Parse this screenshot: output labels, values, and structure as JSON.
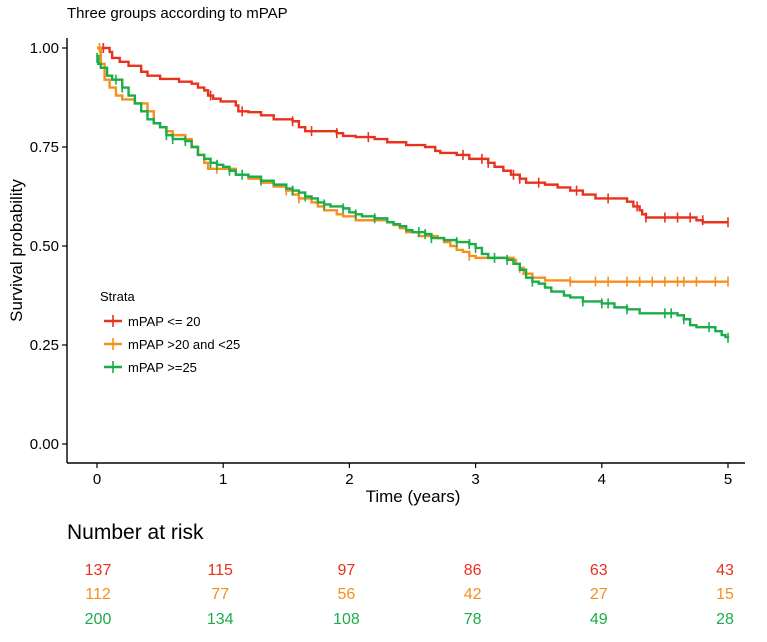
{
  "chart_data": {
    "type": "line",
    "title": "Three groups according to mPAP",
    "xlabel": "Time (years)",
    "ylabel": "Survival probability",
    "xlim": [
      0,
      5
    ],
    "ylim": [
      0,
      1
    ],
    "x_ticks": [
      0,
      1,
      2,
      3,
      4,
      5
    ],
    "x_tick_labels": [
      "0",
      "1",
      "2",
      "3",
      "4",
      "5"
    ],
    "y_ticks": [
      0,
      0.25,
      0.5,
      0.75,
      1
    ],
    "y_tick_labels": [
      "0.00",
      "0.25",
      "0.50",
      "0.75",
      "1.00"
    ],
    "grid": false,
    "legend_title": "Strata",
    "legend_position": "left-middle",
    "series": [
      {
        "name": "mPAP <= 20",
        "color": "#e8321e",
        "steps": [
          [
            0,
            1.0
          ],
          [
            0.1,
            0.99
          ],
          [
            0.12,
            0.975
          ],
          [
            0.18,
            0.965
          ],
          [
            0.25,
            0.955
          ],
          [
            0.35,
            0.94
          ],
          [
            0.4,
            0.93
          ],
          [
            0.5,
            0.922
          ],
          [
            0.65,
            0.915
          ],
          [
            0.75,
            0.91
          ],
          [
            0.8,
            0.9
          ],
          [
            0.85,
            0.893
          ],
          [
            0.88,
            0.88
          ],
          [
            0.92,
            0.872
          ],
          [
            0.98,
            0.865
          ],
          [
            1.1,
            0.855
          ],
          [
            1.12,
            0.84
          ],
          [
            1.2,
            0.838
          ],
          [
            1.3,
            0.83
          ],
          [
            1.4,
            0.82
          ],
          [
            1.55,
            0.815
          ],
          [
            1.6,
            0.8
          ],
          [
            1.65,
            0.79
          ],
          [
            1.9,
            0.785
          ],
          [
            1.95,
            0.778
          ],
          [
            2.05,
            0.775
          ],
          [
            2.2,
            0.77
          ],
          [
            2.3,
            0.762
          ],
          [
            2.45,
            0.755
          ],
          [
            2.6,
            0.75
          ],
          [
            2.68,
            0.74
          ],
          [
            2.72,
            0.735
          ],
          [
            2.85,
            0.73
          ],
          [
            2.95,
            0.72
          ],
          [
            3.1,
            0.71
          ],
          [
            3.15,
            0.7
          ],
          [
            3.22,
            0.69
          ],
          [
            3.28,
            0.68
          ],
          [
            3.35,
            0.67
          ],
          [
            3.4,
            0.66
          ],
          [
            3.55,
            0.655
          ],
          [
            3.65,
            0.648
          ],
          [
            3.75,
            0.64
          ],
          [
            3.85,
            0.63
          ],
          [
            3.95,
            0.62
          ],
          [
            4.2,
            0.612
          ],
          [
            4.25,
            0.6
          ],
          [
            4.3,
            0.59
          ],
          [
            4.32,
            0.58
          ],
          [
            4.35,
            0.572
          ],
          [
            4.75,
            0.565
          ],
          [
            4.8,
            0.56
          ],
          [
            5.0,
            0.56
          ]
        ],
        "censors": [
          [
            0.05,
            1.0
          ],
          [
            0.9,
            0.88
          ],
          [
            1.15,
            0.84
          ],
          [
            1.55,
            0.815
          ],
          [
            1.7,
            0.79
          ],
          [
            1.9,
            0.785
          ],
          [
            2.15,
            0.775
          ],
          [
            2.9,
            0.73
          ],
          [
            3.05,
            0.72
          ],
          [
            3.1,
            0.71
          ],
          [
            3.3,
            0.68
          ],
          [
            3.35,
            0.67
          ],
          [
            3.5,
            0.66
          ],
          [
            3.8,
            0.64
          ],
          [
            4.05,
            0.62
          ],
          [
            4.28,
            0.6
          ],
          [
            4.35,
            0.572
          ],
          [
            4.5,
            0.572
          ],
          [
            4.6,
            0.572
          ],
          [
            4.7,
            0.572
          ],
          [
            4.8,
            0.565
          ],
          [
            5.0,
            0.56
          ]
        ]
      },
      {
        "name": "mPAP >20 and <25",
        "color": "#f5901e",
        "steps": [
          [
            0,
            1.0
          ],
          [
            0.03,
            0.96
          ],
          [
            0.06,
            0.92
          ],
          [
            0.1,
            0.9
          ],
          [
            0.15,
            0.88
          ],
          [
            0.2,
            0.87
          ],
          [
            0.3,
            0.86
          ],
          [
            0.4,
            0.84
          ],
          [
            0.45,
            0.81
          ],
          [
            0.5,
            0.8
          ],
          [
            0.55,
            0.79
          ],
          [
            0.6,
            0.78
          ],
          [
            0.7,
            0.77
          ],
          [
            0.75,
            0.75
          ],
          [
            0.8,
            0.73
          ],
          [
            0.85,
            0.71
          ],
          [
            0.88,
            0.695
          ],
          [
            1.1,
            0.68
          ],
          [
            1.2,
            0.67
          ],
          [
            1.3,
            0.66
          ],
          [
            1.4,
            0.65
          ],
          [
            1.5,
            0.64
          ],
          [
            1.55,
            0.63
          ],
          [
            1.6,
            0.62
          ],
          [
            1.7,
            0.61
          ],
          [
            1.75,
            0.6
          ],
          [
            1.8,
            0.59
          ],
          [
            1.9,
            0.58
          ],
          [
            1.95,
            0.575
          ],
          [
            2.05,
            0.565
          ],
          [
            2.3,
            0.56
          ],
          [
            2.35,
            0.553
          ],
          [
            2.4,
            0.545
          ],
          [
            2.45,
            0.535
          ],
          [
            2.55,
            0.525
          ],
          [
            2.7,
            0.52
          ],
          [
            2.75,
            0.51
          ],
          [
            2.8,
            0.5
          ],
          [
            2.85,
            0.49
          ],
          [
            2.9,
            0.485
          ],
          [
            2.95,
            0.475
          ],
          [
            3.0,
            0.47
          ],
          [
            3.3,
            0.465
          ],
          [
            3.32,
            0.455
          ],
          [
            3.35,
            0.445
          ],
          [
            3.38,
            0.43
          ],
          [
            3.45,
            0.42
          ],
          [
            3.55,
            0.413
          ],
          [
            3.75,
            0.41
          ],
          [
            5.0,
            0.41
          ]
        ],
        "censors": [
          [
            0.02,
            1.0
          ],
          [
            0.6,
            0.78
          ],
          [
            0.95,
            0.695
          ],
          [
            1.5,
            0.64
          ],
          [
            1.6,
            0.62
          ],
          [
            2.95,
            0.475
          ],
          [
            3.35,
            0.445
          ],
          [
            3.75,
            0.41
          ],
          [
            3.95,
            0.41
          ],
          [
            4.05,
            0.41
          ],
          [
            4.2,
            0.41
          ],
          [
            4.3,
            0.41
          ],
          [
            4.4,
            0.41
          ],
          [
            4.5,
            0.41
          ],
          [
            4.6,
            0.41
          ],
          [
            4.65,
            0.41
          ],
          [
            4.75,
            0.41
          ],
          [
            4.9,
            0.41
          ],
          [
            5.0,
            0.41
          ]
        ]
      },
      {
        "name": "mPAP >=25",
        "color": "#1aad49",
        "steps": [
          [
            0,
            0.98
          ],
          [
            0.01,
            0.96
          ],
          [
            0.03,
            0.95
          ],
          [
            0.08,
            0.93
          ],
          [
            0.12,
            0.92
          ],
          [
            0.2,
            0.9
          ],
          [
            0.25,
            0.88
          ],
          [
            0.3,
            0.86
          ],
          [
            0.35,
            0.84
          ],
          [
            0.4,
            0.82
          ],
          [
            0.45,
            0.81
          ],
          [
            0.5,
            0.8
          ],
          [
            0.55,
            0.78
          ],
          [
            0.6,
            0.77
          ],
          [
            0.7,
            0.765
          ],
          [
            0.75,
            0.75
          ],
          [
            0.8,
            0.73
          ],
          [
            0.85,
            0.72
          ],
          [
            0.9,
            0.71
          ],
          [
            0.95,
            0.705
          ],
          [
            1.0,
            0.7
          ],
          [
            1.05,
            0.69
          ],
          [
            1.1,
            0.68
          ],
          [
            1.15,
            0.68
          ],
          [
            1.2,
            0.675
          ],
          [
            1.3,
            0.665
          ],
          [
            1.4,
            0.655
          ],
          [
            1.5,
            0.645
          ],
          [
            1.55,
            0.64
          ],
          [
            1.6,
            0.635
          ],
          [
            1.65,
            0.625
          ],
          [
            1.7,
            0.62
          ],
          [
            1.75,
            0.61
          ],
          [
            1.8,
            0.605
          ],
          [
            1.85,
            0.6
          ],
          [
            1.95,
            0.595
          ],
          [
            2.0,
            0.585
          ],
          [
            2.05,
            0.58
          ],
          [
            2.1,
            0.575
          ],
          [
            2.2,
            0.57
          ],
          [
            2.3,
            0.56
          ],
          [
            2.35,
            0.555
          ],
          [
            2.4,
            0.55
          ],
          [
            2.45,
            0.54
          ],
          [
            2.5,
            0.535
          ],
          [
            2.6,
            0.53
          ],
          [
            2.65,
            0.52
          ],
          [
            2.75,
            0.515
          ],
          [
            2.85,
            0.51
          ],
          [
            2.95,
            0.505
          ],
          [
            3.0,
            0.495
          ],
          [
            3.05,
            0.48
          ],
          [
            3.1,
            0.47
          ],
          [
            3.25,
            0.465
          ],
          [
            3.3,
            0.455
          ],
          [
            3.35,
            0.44
          ],
          [
            3.4,
            0.42
          ],
          [
            3.45,
            0.41
          ],
          [
            3.5,
            0.405
          ],
          [
            3.55,
            0.395
          ],
          [
            3.6,
            0.385
          ],
          [
            3.7,
            0.375
          ],
          [
            3.75,
            0.37
          ],
          [
            3.85,
            0.36
          ],
          [
            4.0,
            0.355
          ],
          [
            4.1,
            0.345
          ],
          [
            4.2,
            0.34
          ],
          [
            4.3,
            0.33
          ],
          [
            4.6,
            0.325
          ],
          [
            4.65,
            0.315
          ],
          [
            4.7,
            0.3
          ],
          [
            4.75,
            0.295
          ],
          [
            4.9,
            0.285
          ],
          [
            4.95,
            0.275
          ],
          [
            4.98,
            0.27
          ],
          [
            5.0,
            0.268
          ]
        ],
        "censors": [
          [
            0.0,
            0.975
          ],
          [
            0.15,
            0.92
          ],
          [
            0.2,
            0.9
          ],
          [
            0.55,
            0.78
          ],
          [
            0.6,
            0.77
          ],
          [
            0.7,
            0.765
          ],
          [
            0.9,
            0.71
          ],
          [
            0.95,
            0.705
          ],
          [
            1.05,
            0.69
          ],
          [
            1.15,
            0.68
          ],
          [
            1.3,
            0.665
          ],
          [
            1.55,
            0.64
          ],
          [
            1.65,
            0.625
          ],
          [
            1.8,
            0.605
          ],
          [
            1.95,
            0.595
          ],
          [
            2.05,
            0.58
          ],
          [
            2.2,
            0.57
          ],
          [
            2.55,
            0.535
          ],
          [
            2.6,
            0.53
          ],
          [
            2.65,
            0.52
          ],
          [
            2.85,
            0.51
          ],
          [
            2.95,
            0.505
          ],
          [
            3.0,
            0.495
          ],
          [
            3.15,
            0.47
          ],
          [
            3.25,
            0.465
          ],
          [
            3.45,
            0.41
          ],
          [
            3.85,
            0.36
          ],
          [
            4.0,
            0.355
          ],
          [
            4.05,
            0.355
          ],
          [
            4.2,
            0.34
          ],
          [
            4.5,
            0.33
          ],
          [
            4.55,
            0.33
          ],
          [
            4.65,
            0.315
          ],
          [
            4.85,
            0.295
          ],
          [
            5.0,
            0.268
          ]
        ]
      }
    ],
    "risk_table": {
      "title": "Number at risk",
      "times": [
        0,
        1,
        2,
        3,
        4,
        5
      ],
      "rows": [
        {
          "name": "mPAP <= 20",
          "values": [
            "137",
            "115",
            "97",
            "86",
            "63",
            "43"
          ]
        },
        {
          "name": "mPAP >20 and <25",
          "values": [
            "112",
            "77",
            "56",
            "42",
            "27",
            "15"
          ]
        },
        {
          "name": "mPAP >=25",
          "values": [
            "200",
            "134",
            "108",
            "78",
            "49",
            "28"
          ]
        }
      ]
    }
  }
}
